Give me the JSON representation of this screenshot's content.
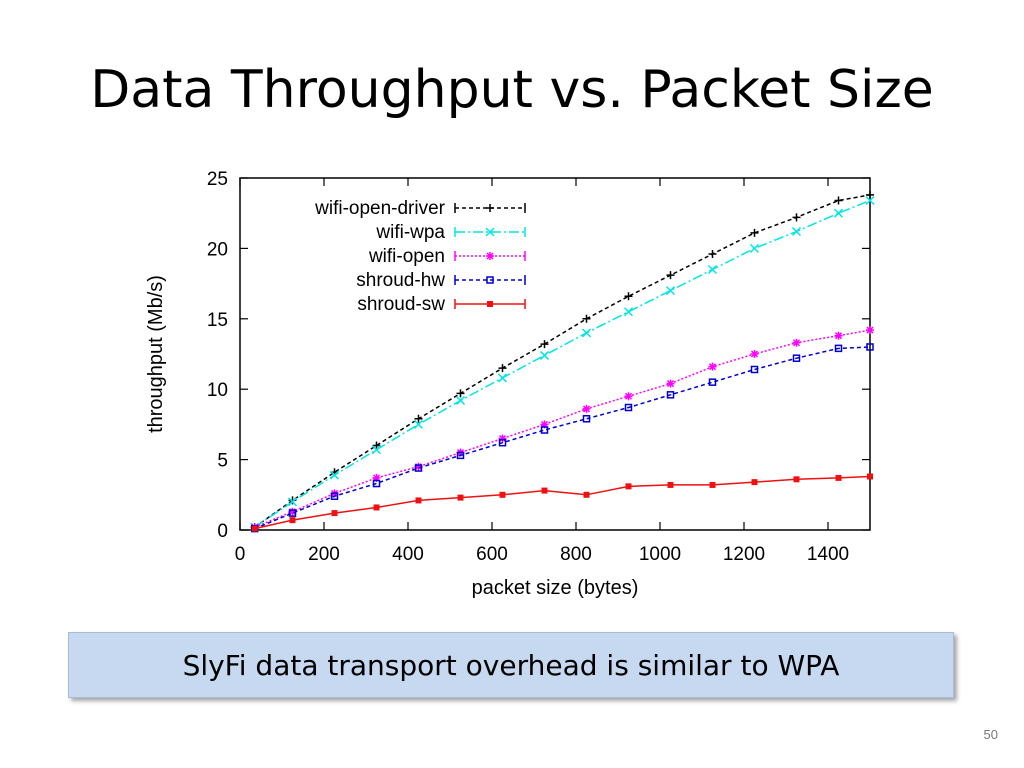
{
  "slide": {
    "title": "Data Throughput vs. Packet Size",
    "callout": "SlyFi data transport overhead is similar to WPA",
    "page_number": "50"
  },
  "chart_data": {
    "type": "line",
    "title": "",
    "xlabel": "packet size (bytes)",
    "ylabel": "throughput (Mb/s)",
    "xlim": [
      0,
      1500
    ],
    "ylim": [
      0,
      25
    ],
    "xticks": [
      0,
      200,
      400,
      600,
      800,
      1000,
      1200,
      1400
    ],
    "yticks": [
      0,
      5,
      10,
      15,
      20,
      25
    ],
    "grid": false,
    "legend_position": "top-left",
    "x": [
      35,
      125,
      225,
      325,
      425,
      525,
      625,
      725,
      825,
      925,
      1025,
      1125,
      1225,
      1325,
      1425,
      1500
    ],
    "series": [
      {
        "name": "wifi-open-driver",
        "color": "#000000",
        "dash": "4,3",
        "marker": "plus",
        "values": [
          0.2,
          2.1,
          4.1,
          6.0,
          7.9,
          9.7,
          11.5,
          13.2,
          15.0,
          16.6,
          18.1,
          19.6,
          21.1,
          22.2,
          23.4,
          23.8
        ]
      },
      {
        "name": "wifi-wpa",
        "color": "#00e5e5",
        "dash": "10,3,2,3",
        "marker": "cross",
        "values": [
          0.2,
          2.0,
          3.9,
          5.7,
          7.5,
          9.2,
          10.8,
          12.4,
          14.0,
          15.5,
          17.0,
          18.5,
          20.0,
          21.2,
          22.5,
          23.4
        ]
      },
      {
        "name": "wifi-open",
        "color": "#ff00ff",
        "dash": "2,2",
        "marker": "star",
        "values": [
          0.2,
          1.3,
          2.6,
          3.7,
          4.5,
          5.5,
          6.5,
          7.5,
          8.6,
          9.5,
          10.4,
          11.6,
          12.5,
          13.3,
          13.8,
          14.2
        ]
      },
      {
        "name": "shroud-hw",
        "color": "#0000cc",
        "dash": "4,3",
        "marker": "square",
        "values": [
          0.1,
          1.2,
          2.4,
          3.3,
          4.4,
          5.3,
          6.2,
          7.1,
          7.9,
          8.7,
          9.6,
          10.5,
          11.4,
          12.2,
          12.9,
          13.0
        ]
      },
      {
        "name": "shroud-sw",
        "color": "#ee1111",
        "dash": "",
        "marker": "filled-square",
        "values": [
          0.1,
          0.7,
          1.2,
          1.6,
          2.1,
          2.3,
          2.5,
          2.8,
          2.5,
          3.1,
          3.2,
          3.2,
          3.4,
          3.6,
          3.7,
          3.8
        ]
      }
    ]
  }
}
